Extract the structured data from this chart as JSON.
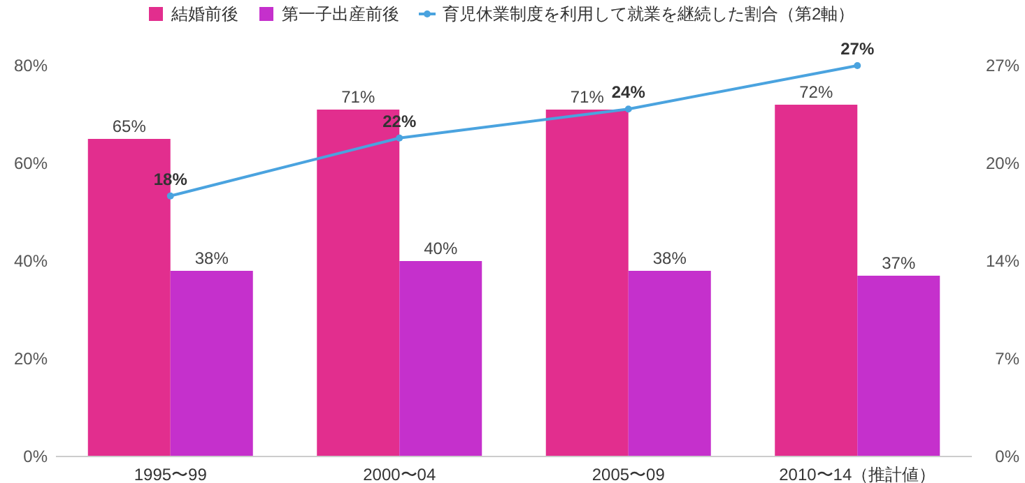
{
  "chart_data": {
    "type": "bar",
    "categories": [
      "1995〜99",
      "2000〜04",
      "2005〜09",
      "2010〜14（推計値）"
    ],
    "series": [
      {
        "name": "結婚前後",
        "color": "#e22e8e",
        "values": [
          65,
          71,
          71,
          72
        ],
        "value_labels": [
          "65%",
          "71%",
          "71%",
          "72%"
        ]
      },
      {
        "name": "第一子出産前後",
        "color": "#c530cc",
        "values": [
          38,
          40,
          38,
          37
        ],
        "value_labels": [
          "38%",
          "40%",
          "38%",
          "37%"
        ]
      },
      {
        "name": "育児休業制度を利用して就業を継続した割合（第2軸）",
        "type": "line",
        "axis": "y2",
        "color": "#4aa3df",
        "values": [
          18,
          22,
          24,
          27
        ],
        "value_labels": [
          "18%",
          "22%",
          "24%",
          "27%"
        ]
      }
    ],
    "ylim": [
      0,
      80
    ],
    "yticks": [
      {
        "value": 0,
        "label": "0%"
      },
      {
        "value": 20,
        "label": "20%"
      },
      {
        "value": 40,
        "label": "40%"
      },
      {
        "value": 60,
        "label": "60%"
      },
      {
        "value": 80,
        "label": "80%"
      }
    ],
    "y2lim": [
      0,
      27
    ],
    "y2ticks": [
      {
        "value": 0,
        "label": "0%"
      },
      {
        "value": 6.75,
        "label": "7%"
      },
      {
        "value": 13.5,
        "label": "14%"
      },
      {
        "value": 20.25,
        "label": "20%"
      },
      {
        "value": 27,
        "label": "27%"
      }
    ],
    "legend": "top",
    "marker": "circle",
    "grid": false
  }
}
